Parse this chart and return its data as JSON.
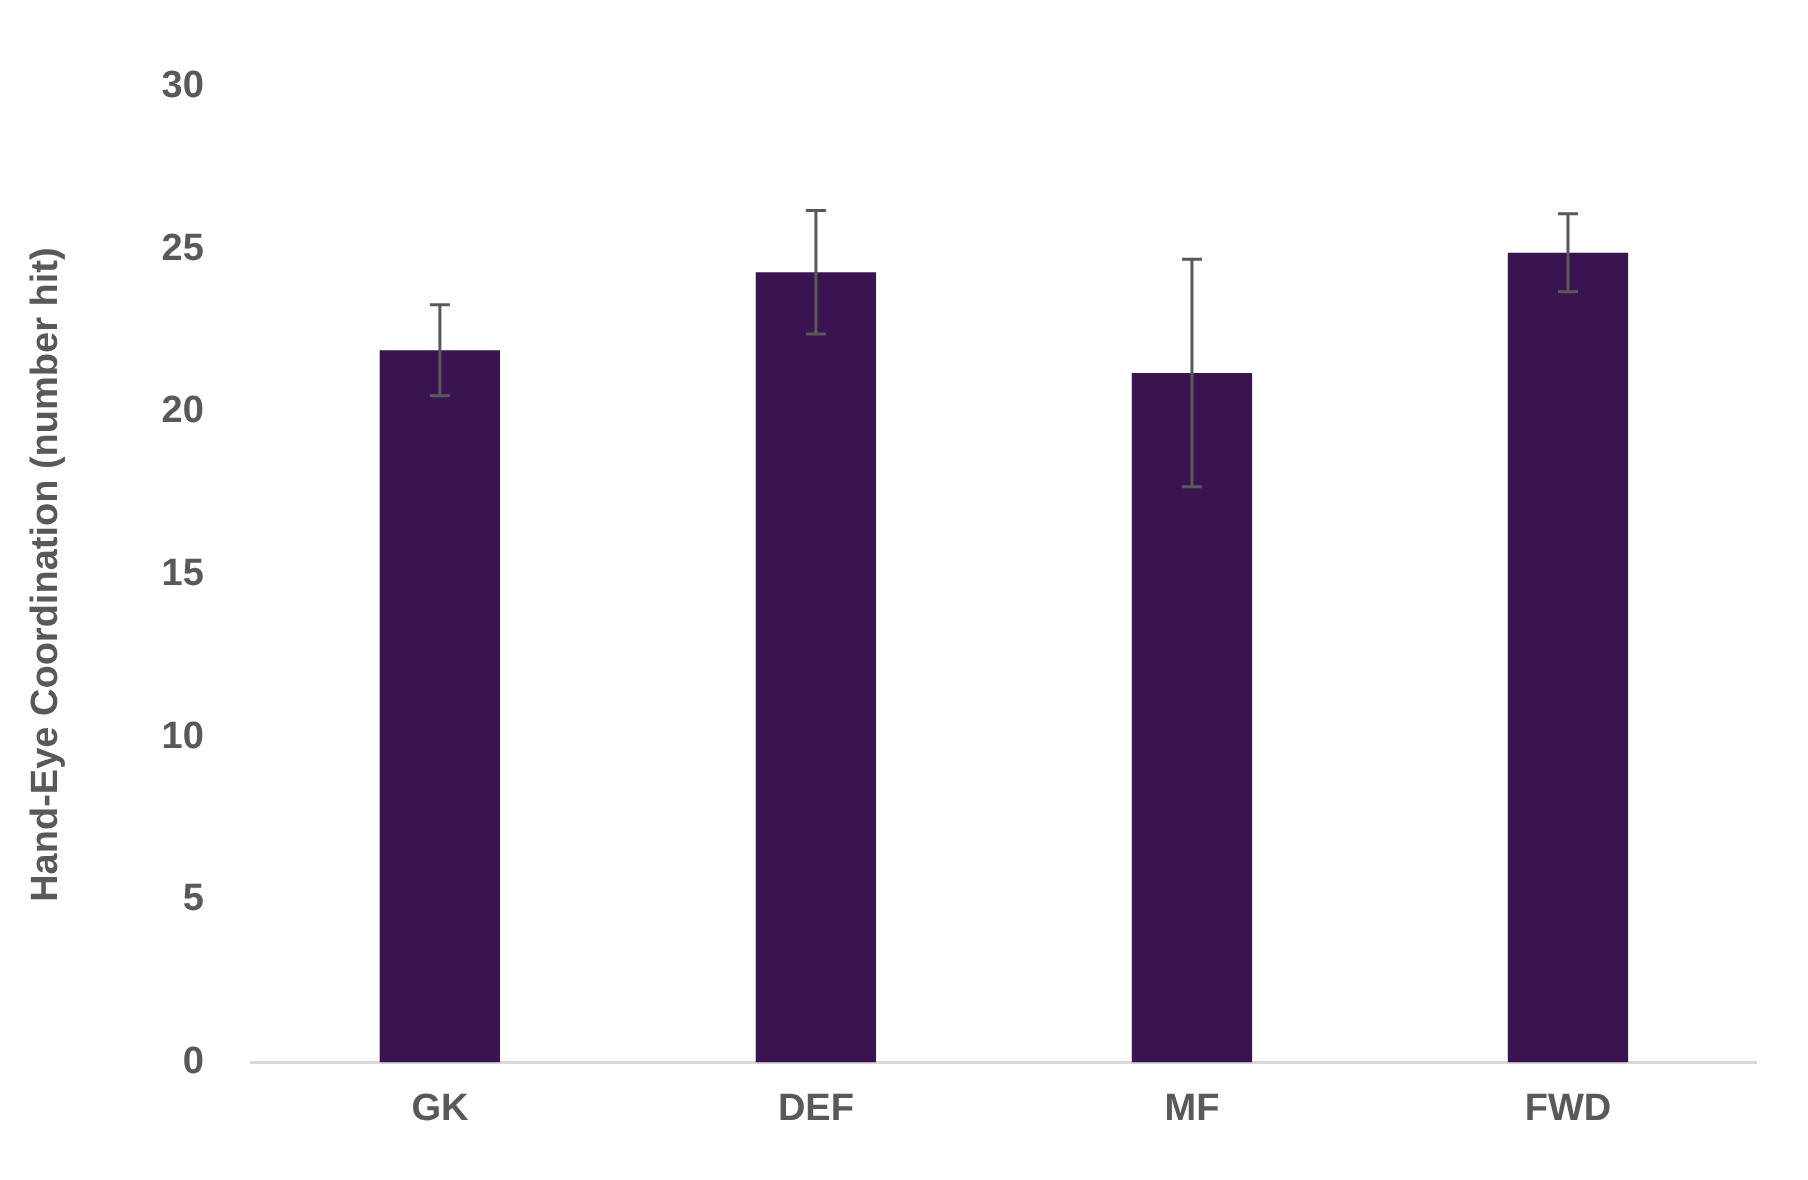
{
  "chart_data": {
    "type": "bar",
    "ylabel": "Hand-Eye Coordination (number hit)",
    "categories": [
      "GK",
      "DEF",
      "MF",
      "FWD"
    ],
    "values": [
      21.9,
      24.3,
      21.2,
      24.9
    ],
    "errors": [
      1.4,
      1.9,
      3.5,
      1.2
    ],
    "color": "#3a1450",
    "ylim": [
      0,
      30
    ],
    "yticks": [
      0,
      5,
      10,
      15,
      20,
      25,
      30
    ],
    "grid": false,
    "legend": false
  }
}
